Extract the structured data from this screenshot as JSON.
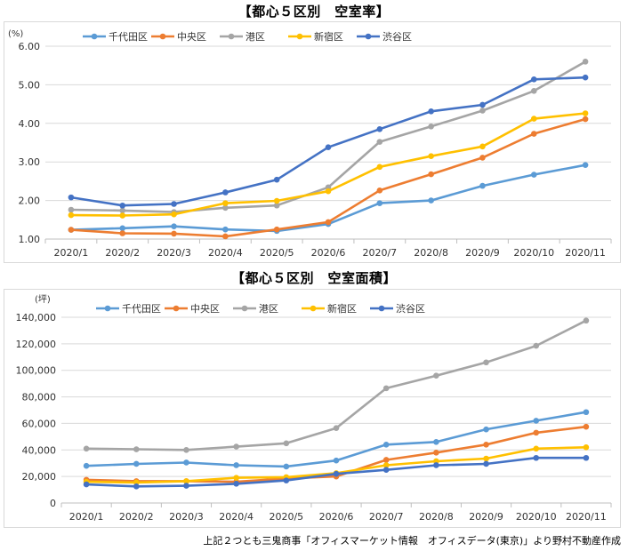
{
  "chart_data": [
    {
      "type": "line",
      "title": "【都心５区別　空室率】",
      "ylabel": "(%)",
      "ylim": [
        1.0,
        6.0
      ],
      "yticks": [
        "1.00",
        "2.00",
        "3.00",
        "4.00",
        "5.00",
        "6.00"
      ],
      "grid": true,
      "legend": "top-left",
      "categories": [
        "2020/1",
        "2020/2",
        "2020/3",
        "2020/4",
        "2020/5",
        "2020/6",
        "2020/7",
        "2020/8",
        "2020/9",
        "2020/10",
        "2020/11"
      ],
      "series": [
        {
          "name": "千代田区",
          "color": "#5b9bd5",
          "values": [
            1.24,
            1.28,
            1.33,
            1.25,
            1.21,
            1.39,
            1.93,
            2.0,
            2.38,
            2.67,
            2.92
          ]
        },
        {
          "name": "中央区",
          "color": "#ed7d31",
          "values": [
            1.24,
            1.15,
            1.14,
            1.07,
            1.25,
            1.44,
            2.26,
            2.68,
            3.11,
            3.73,
            4.11
          ]
        },
        {
          "name": "港区",
          "color": "#a5a5a5",
          "values": [
            1.76,
            1.74,
            1.7,
            1.81,
            1.87,
            2.34,
            3.52,
            3.92,
            4.33,
            4.84,
            5.6
          ]
        },
        {
          "name": "新宿区",
          "color": "#ffc000",
          "values": [
            1.62,
            1.61,
            1.64,
            1.93,
            1.99,
            2.24,
            2.87,
            3.15,
            3.4,
            4.12,
            4.26
          ]
        },
        {
          "name": "渋谷区",
          "color": "#4472c4",
          "values": [
            2.08,
            1.87,
            1.91,
            2.21,
            2.54,
            3.38,
            3.85,
            4.31,
            4.48,
            5.14,
            5.19
          ]
        }
      ]
    },
    {
      "type": "line",
      "title": "【都心５区別　空室面積】",
      "ylabel": "(坪)",
      "ylim": [
        0,
        140000
      ],
      "yticks": [
        "0",
        "20,000",
        "40,000",
        "60,000",
        "80,000",
        "100,000",
        "120,000",
        "140,000"
      ],
      "grid": true,
      "legend": "top-left",
      "categories": [
        "2020/1",
        "2020/2",
        "2020/3",
        "2020/4",
        "2020/5",
        "2020/6",
        "2020/7",
        "2020/8",
        "2020/9",
        "2020/10",
        "2020/11"
      ],
      "series": [
        {
          "name": "千代田区",
          "color": "#5b9bd5",
          "values": [
            28000,
            29500,
            30500,
            28500,
            27500,
            32000,
            44000,
            46000,
            55500,
            62000,
            68500
          ]
        },
        {
          "name": "中央区",
          "color": "#ed7d31",
          "values": [
            17500,
            16500,
            16500,
            16000,
            18500,
            20000,
            32500,
            38000,
            44000,
            53000,
            57500
          ]
        },
        {
          "name": "港区",
          "color": "#a5a5a5",
          "values": [
            41000,
            40500,
            40000,
            42500,
            45000,
            56500,
            86500,
            96000,
            106000,
            118500,
            137500
          ]
        },
        {
          "name": "新宿区",
          "color": "#ffc000",
          "values": [
            16000,
            15500,
            16500,
            19000,
            19500,
            22500,
            28500,
            31500,
            33500,
            41000,
            42000
          ]
        },
        {
          "name": "渋谷区",
          "color": "#4472c4",
          "values": [
            14000,
            12500,
            13000,
            14500,
            17000,
            22000,
            25000,
            28500,
            29500,
            34000,
            34000
          ]
        }
      ]
    }
  ],
  "source_note": "上記２つとも三鬼商事「オフィスマーケット情報　オフィスデータ(東京)」より野村不動産作成"
}
